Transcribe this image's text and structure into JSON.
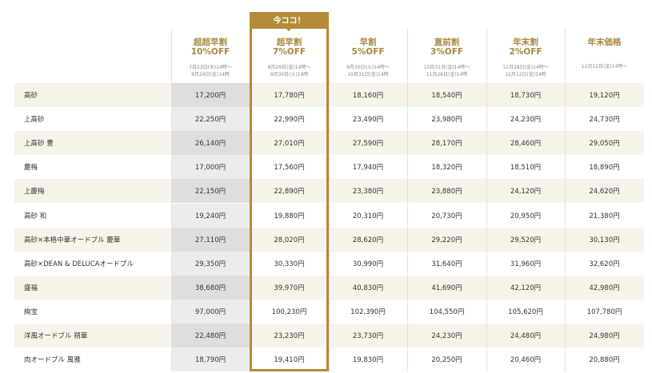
{
  "badge": "今ココ！",
  "columns": [
    {
      "title": "超超早割",
      "discount": "10%OFF",
      "period": [
        "7月23日(水)14時〜",
        "8月29日(金)14時"
      ]
    },
    {
      "title": "超早割",
      "discount": "7%OFF",
      "period": [
        "8月29日(金)14時〜",
        "9月30日(火)14時"
      ]
    },
    {
      "title": "早割",
      "discount": "5%OFF",
      "period": [
        "9月30日(火)14時〜",
        "10月31日(金)14時"
      ]
    },
    {
      "title": "直前割",
      "discount": "3%OFF",
      "period": [
        "10月31日(金)14時〜",
        "11月28日(金)14時"
      ]
    },
    {
      "title": "年末割",
      "discount": "2%OFF",
      "period": [
        "11月28日(金)14時〜",
        "12月12日(金)14時"
      ]
    },
    {
      "title": "年末価格",
      "period": [
        "12月12日(金)14時〜"
      ]
    }
  ],
  "rows": [
    {
      "name": "高砂",
      "prices": [
        "17,200円",
        "17,780円",
        "18,160円",
        "18,540円",
        "18,730円",
        "19,120円"
      ]
    },
    {
      "name": "上高砂",
      "prices": [
        "22,250円",
        "22,990円",
        "23,490円",
        "23,980円",
        "24,230円",
        "24,730円"
      ]
    },
    {
      "name": "上高砂 豊",
      "prices": [
        "26,140円",
        "27,010円",
        "27,590円",
        "28,170円",
        "28,460円",
        "29,050円"
      ]
    },
    {
      "name": "慶梅",
      "prices": [
        "17,000円",
        "17,560円",
        "17,940円",
        "18,320円",
        "18,510円",
        "18,890円"
      ]
    },
    {
      "name": "上慶梅",
      "prices": [
        "22,150円",
        "22,890円",
        "23,380円",
        "23,880円",
        "24,120円",
        "24,620円"
      ]
    },
    {
      "name": "高砂 和",
      "prices": [
        "19,240円",
        "19,880円",
        "20,310円",
        "20,730円",
        "20,950円",
        "21,380円"
      ]
    },
    {
      "name": "高砂×本格中華オードブル 慶華",
      "prices": [
        "27,110円",
        "28,020円",
        "28,620円",
        "29,220円",
        "29,520円",
        "30,130円"
      ]
    },
    {
      "name": "高砂×DEAN & DELUCAオードブル",
      "prices": [
        "29,350円",
        "30,330円",
        "30,990円",
        "31,640円",
        "31,960円",
        "32,620円"
      ]
    },
    {
      "name": "盛福",
      "prices": [
        "38,680円",
        "39,970円",
        "40,830円",
        "41,690円",
        "42,120円",
        "42,980円"
      ]
    },
    {
      "name": "絢宝",
      "prices": [
        "97,000円",
        "100,230円",
        "102,390円",
        "104,550円",
        "105,620円",
        "107,780円"
      ]
    },
    {
      "name": "洋風オードブル 朔華",
      "prices": [
        "22,480円",
        "23,230円",
        "23,730円",
        "24,230円",
        "24,480円",
        "24,980円"
      ]
    },
    {
      "name": "肉オードブル 風雅",
      "prices": [
        "18,790円",
        "19,410円",
        "19,830円",
        "20,250円",
        "20,460円",
        "20,880円"
      ]
    }
  ]
}
